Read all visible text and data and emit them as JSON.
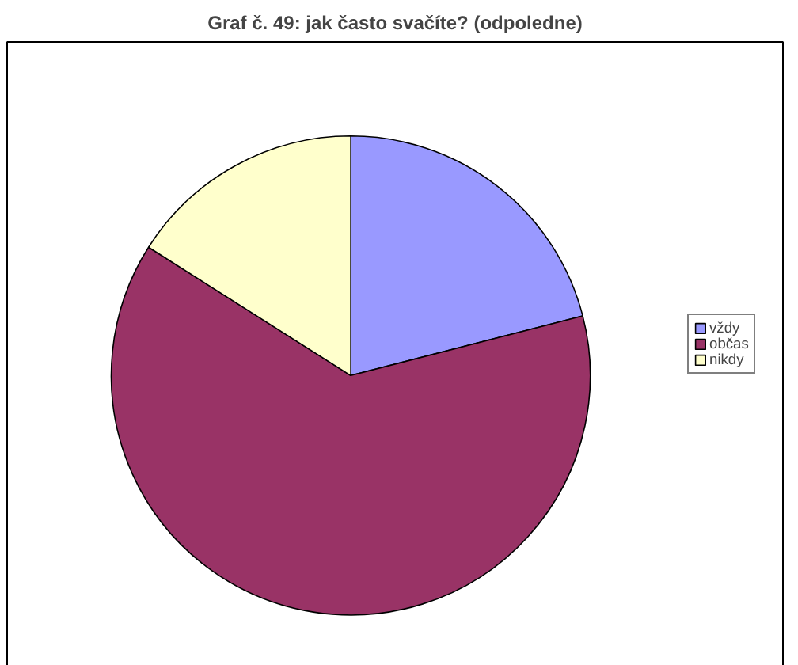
{
  "chart_data": {
    "type": "pie",
    "title": "Graf č. 49: jak často svačíte? (odpoledne)",
    "categories": [
      "vždy",
      "občas",
      "nikdy"
    ],
    "values": [
      21,
      63,
      16
    ],
    "colors": [
      "#9999ff",
      "#993366",
      "#ffffcc"
    ],
    "legend": "right"
  }
}
